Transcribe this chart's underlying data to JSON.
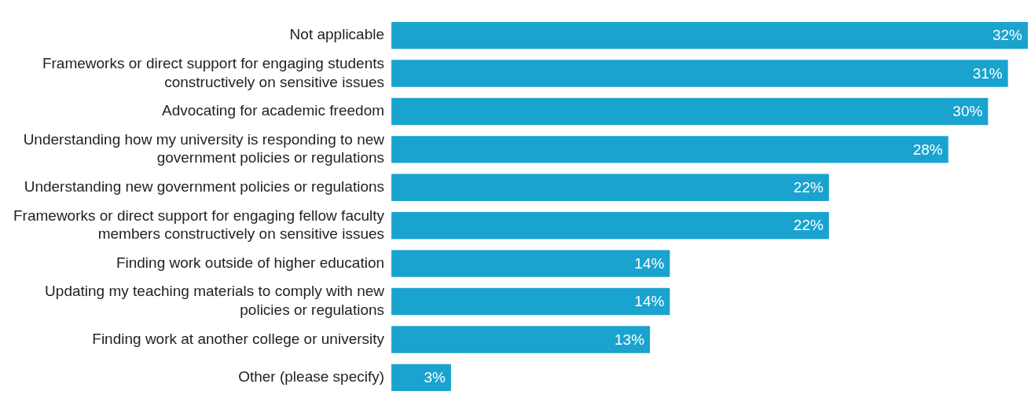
{
  "chart_data": {
    "type": "bar",
    "orientation": "horizontal",
    "categories": [
      "Not applicable",
      "Frameworks or direct support for engaging students constructively on sensitive issues",
      "Advocating for academic freedom",
      "Understanding how my university is responding to new government policies or regulations",
      "Understanding new government policies or regulations",
      "Frameworks or direct support for engaging fellow faculty members constructively on sensitive issues",
      "Finding work outside of higher education",
      "Updating my teaching materials to comply with new policies or regulations",
      "Finding work at another college or university",
      "Other (please specify)"
    ],
    "values": [
      32,
      31,
      30,
      28,
      22,
      22,
      14,
      14,
      13,
      3
    ],
    "value_labels": [
      "32%",
      "31%",
      "30%",
      "28%",
      "22%",
      "22%",
      "14%",
      "14%",
      "13%",
      "3%"
    ],
    "color": "#1aa3cf",
    "xlim": [
      0,
      32
    ],
    "tick_labels": "y",
    "grid": false,
    "legend": false
  }
}
